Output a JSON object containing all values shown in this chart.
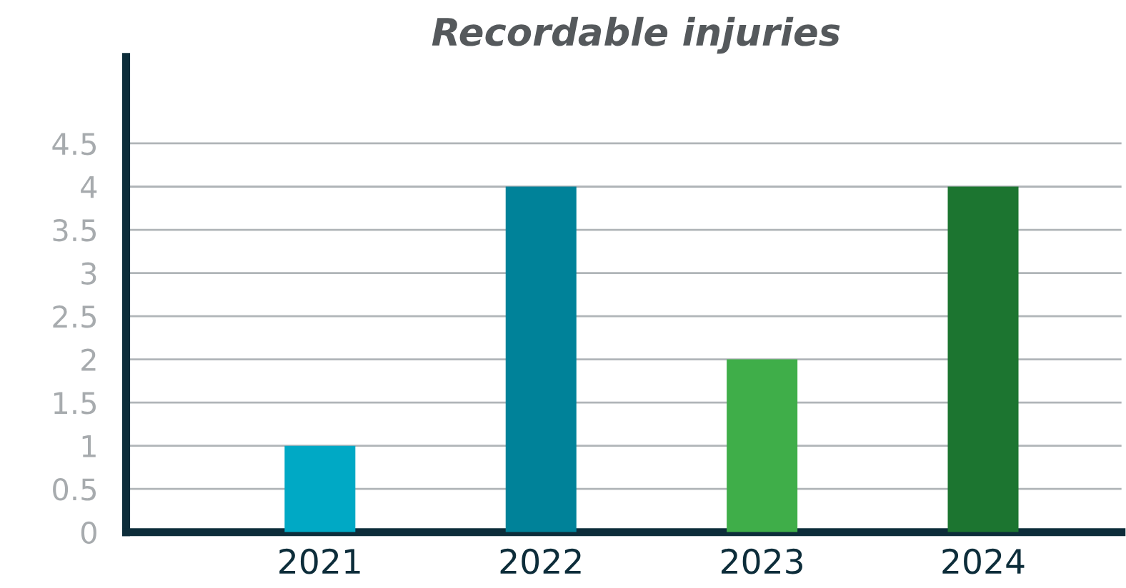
{
  "chart_data": {
    "type": "bar",
    "title": "Recordable injuries",
    "categories": [
      "2021",
      "2022",
      "2023",
      "2024"
    ],
    "values": [
      1,
      4,
      2,
      4
    ],
    "colors": [
      "#00a9c5",
      "#008299",
      "#3fae49",
      "#1c7530"
    ],
    "ylim": [
      0,
      5.5
    ],
    "yticks": [
      0,
      0.5,
      1,
      1.5,
      2,
      2.5,
      3,
      3.5,
      4,
      4.5
    ],
    "grid": "y",
    "legend": false
  }
}
